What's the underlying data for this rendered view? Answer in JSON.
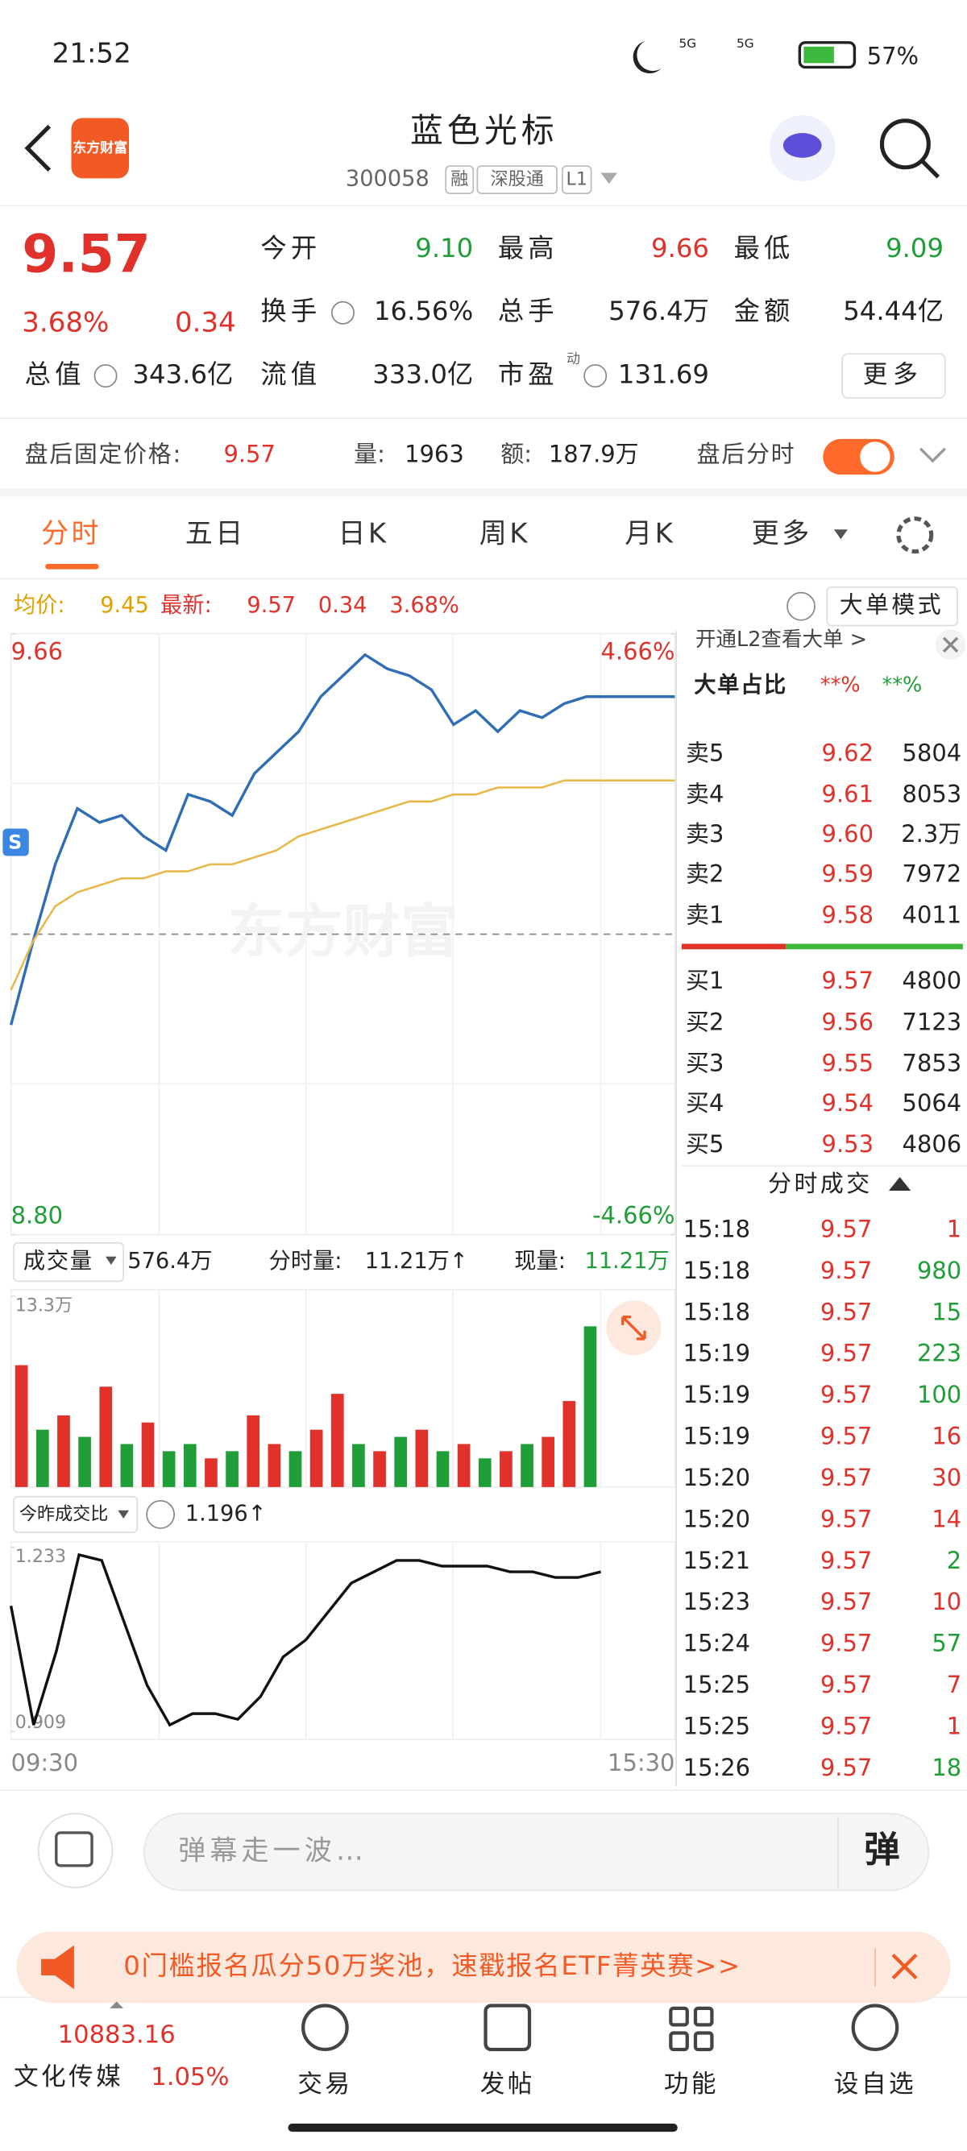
{
  "status_bar": {
    "time": "21:52",
    "signal": [
      "5G",
      "5G"
    ],
    "battery": "57%"
  },
  "header": {
    "logo": "东方财富",
    "title": "蓝色光标",
    "code": "300058",
    "tags": [
      "融",
      "深股通",
      "L1"
    ]
  },
  "quote": {
    "price": "9.57",
    "change_pct": "3.68%",
    "change": "0.34",
    "fields": [
      {
        "label": "今开",
        "value": "9.10",
        "color": "#1f9d37"
      },
      {
        "label": "最高",
        "value": "9.66",
        "color": "#e0312b"
      },
      {
        "label": "最低",
        "value": "9.09",
        "color": "#1f9d37"
      },
      {
        "label": "换手",
        "value": "16.56%",
        "color": "#222222"
      },
      {
        "label": "总手",
        "value": "576.4万",
        "color": "#222222"
      },
      {
        "label": "金额",
        "value": "54.44亿",
        "color": "#222222"
      },
      {
        "label": "总值",
        "value": "343.6亿",
        "color": "#222222"
      },
      {
        "label": "流值",
        "value": "333.0亿",
        "color": "#222222"
      },
      {
        "label": "市盈",
        "value": "131.69",
        "color": "#222222"
      }
    ],
    "pe_mark": "动",
    "more": "更多"
  },
  "after_hours": {
    "label": "盘后固定价格:",
    "price": "9.57",
    "volume_label": "量:",
    "volume": "1963",
    "amount_label": "额:",
    "amount": "187.9万",
    "toggle_label": "盘后分时"
  },
  "tabs": [
    "分时",
    "五日",
    "日K",
    "周K",
    "月K",
    "更多"
  ],
  "summary": {
    "avg_label": "均价:",
    "avg": "9.45",
    "latest_label": "最新:",
    "latest": "9.57",
    "change": "0.34",
    "change_pct": "3.68%",
    "mode": "大单模式"
  },
  "watermark": "东方财富",
  "marker": "S",
  "chart_data": [
    {
      "type": "line",
      "ylim": [
        8.8,
        9.66
      ],
      "yticks": [
        {
          "value": 8.8,
          "label": "8.80"
        },
        9.66
      ],
      "y2lim": [
        -4.66,
        4.66
      ],
      "y2ticks": [
        {
          "value": -4.66,
          "label": "-4.66%"
        },
        {
          "value": 4.66,
          "label": "4.66%"
        }
      ],
      "preclose": 9.23,
      "series": [
        {
          "color": "#2f6db5",
          "values": [
            9.1,
            9.22,
            9.33,
            9.41,
            9.39,
            9.4,
            9.37,
            9.35,
            9.43,
            9.42,
            9.4,
            9.46,
            9.49,
            9.52,
            9.57,
            9.6,
            9.63,
            9.61,
            9.6,
            9.58,
            9.53,
            9.55,
            9.52,
            9.55,
            9.54,
            9.56,
            9.57,
            9.57,
            9.57,
            9.57,
            9.57
          ]
        },
        {
          "color": "#e8b84a",
          "values": [
            9.15,
            9.22,
            9.27,
            9.29,
            9.3,
            9.31,
            9.31,
            9.32,
            9.32,
            9.33,
            9.33,
            9.34,
            9.35,
            9.37,
            9.38,
            9.39,
            9.4,
            9.41,
            9.42,
            9.42,
            9.43,
            9.43,
            9.44,
            9.44,
            9.44,
            9.45,
            9.45,
            9.45,
            9.45,
            9.45,
            9.45
          ]
        }
      ]
    },
    {
      "type": "bar",
      "ylim": [
        0,
        13.3
      ],
      "yticks": [
        {
          "value": 13.3,
          "label": "13.3万"
        }
      ],
      "values": [
        8.5,
        4,
        5,
        3.5,
        7,
        3,
        4.5,
        2.5,
        3,
        2,
        2.5,
        5,
        3,
        2.5,
        4,
        6.5,
        3,
        2.5,
        3.5,
        4,
        2.5,
        3,
        2,
        2.5,
        3,
        3.5,
        6,
        11.21
      ],
      "colors": [
        "#e0312b",
        "#1f9d37",
        "#e0312b",
        "#1f9d37",
        "#e0312b",
        "#1f9d37",
        "#e0312b",
        "#1f9d37",
        "#1f9d37",
        "#e0312b",
        "#1f9d37",
        "#e0312b",
        "#e0312b",
        "#1f9d37",
        "#e0312b",
        "#e0312b",
        "#1f9d37",
        "#e0312b",
        "#1f9d37",
        "#e0312b",
        "#1f9d37",
        "#e0312b",
        "#1f9d37",
        "#e0312b",
        "#1f9d37",
        "#e0312b",
        "#e0312b",
        "#1f9d37"
      ]
    },
    {
      "type": "line",
      "ylim": [
        0.909,
        1.233
      ],
      "yticks": [
        0.909,
        1.233
      ],
      "x_labels": [
        "09:30",
        "15:30"
      ],
      "series": [
        {
          "color": "#111111",
          "values": [
            1.13,
            0.92,
            1.05,
            1.22,
            1.21,
            1.1,
            0.99,
            0.92,
            0.94,
            0.94,
            0.93,
            0.97,
            1.04,
            1.07,
            1.12,
            1.17,
            1.19,
            1.21,
            1.21,
            1.2,
            1.2,
            1.2,
            1.19,
            1.19,
            1.18,
            1.18,
            1.19
          ]
        }
      ]
    }
  ],
  "volume_header": {
    "selector": "成交量",
    "total": "576.4万",
    "period_label": "分时量:",
    "period": "11.21万↑",
    "current_label": "现量:",
    "current": "11.21万"
  },
  "ratio_header": {
    "selector": "今昨成交比",
    "value": "1.196↑"
  },
  "order_book": {
    "banner": "开通L2查看大单 >",
    "big_order_label": "大单占比",
    "big_buy": "**%",
    "big_sell": "**%",
    "asks": [
      [
        "卖5",
        "9.62",
        "5804"
      ],
      [
        "卖4",
        "9.61",
        "8053"
      ],
      [
        "卖3",
        "9.60",
        "2.3万"
      ],
      [
        "卖2",
        "9.59",
        "7972"
      ],
      [
        "卖1",
        "9.58",
        "4011"
      ]
    ],
    "bids": [
      [
        "买1",
        "9.57",
        "4800"
      ],
      [
        "买2",
        "9.56",
        "7123"
      ],
      [
        "买3",
        "9.55",
        "7853"
      ],
      [
        "买4",
        "9.54",
        "5064"
      ],
      [
        "买5",
        "9.53",
        "4806"
      ]
    ]
  },
  "trades": {
    "title": "分时成交",
    "rows": [
      {
        "time": "15:18",
        "price": "9.57",
        "volume": "1",
        "color": "#e0312b"
      },
      {
        "time": "15:18",
        "price": "9.57",
        "volume": "980",
        "color": "#1f9d37"
      },
      {
        "time": "15:18",
        "price": "9.57",
        "volume": "15",
        "color": "#1f9d37"
      },
      {
        "time": "15:19",
        "price": "9.57",
        "volume": "223",
        "color": "#1f9d37"
      },
      {
        "time": "15:19",
        "price": "9.57",
        "volume": "100",
        "color": "#1f9d37"
      },
      {
        "time": "15:19",
        "price": "9.57",
        "volume": "16",
        "color": "#e0312b"
      },
      {
        "time": "15:20",
        "price": "9.57",
        "volume": "30",
        "color": "#e0312b"
      },
      {
        "time": "15:20",
        "price": "9.57",
        "volume": "14",
        "color": "#e0312b"
      },
      {
        "time": "15:21",
        "price": "9.57",
        "volume": "2",
        "color": "#1f9d37"
      },
      {
        "time": "15:23",
        "price": "9.57",
        "volume": "10",
        "color": "#e0312b"
      },
      {
        "time": "15:24",
        "price": "9.57",
        "volume": "57",
        "color": "#1f9d37"
      },
      {
        "time": "15:25",
        "price": "9.57",
        "volume": "7",
        "color": "#e0312b"
      },
      {
        "time": "15:25",
        "price": "9.57",
        "volume": "1",
        "color": "#e0312b"
      },
      {
        "time": "15:26",
        "price": "9.57",
        "volume": "18",
        "color": "#1f9d37"
      }
    ]
  },
  "comment": {
    "placeholder": "弹幕走一波…",
    "button": "弹"
  },
  "banner": {
    "text": "0门槛报名瓜分50万奖池，速戳报名ETF菁英赛>>"
  },
  "nav": {
    "index_value": "10883.16",
    "index_name": "文化传媒",
    "index_change": "1.05%",
    "items": [
      "交易",
      "发帖",
      "功能",
      "设自选"
    ]
  }
}
